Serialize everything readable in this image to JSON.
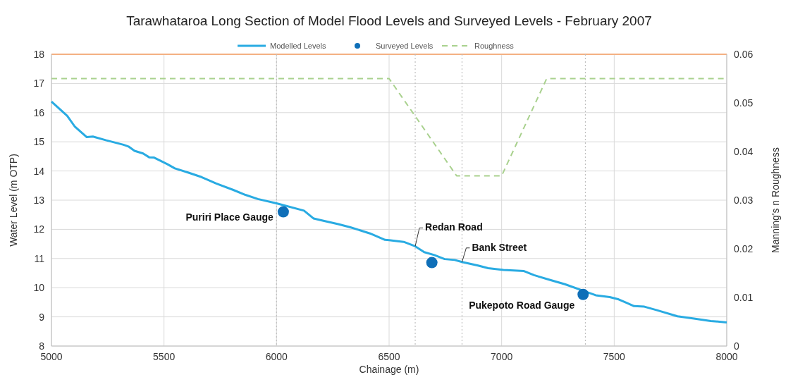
{
  "chart_data": {
    "type": "line",
    "title": "Tarawhataroa Long Section of Model Flood Levels and Surveyed Levels - February 2007",
    "xlabel": "Chainage (m)",
    "ylabel": "Water Level (m OTP)",
    "y2label": "Manning's n Roughness",
    "xlim": [
      5000,
      8000
    ],
    "xticks": [
      5000,
      5500,
      6000,
      6500,
      7000,
      7500,
      8000
    ],
    "ylim": [
      8,
      18
    ],
    "yticks": [
      8,
      9,
      10,
      11,
      12,
      13,
      14,
      15,
      16,
      17,
      18
    ],
    "y2lim": [
      0,
      0.06
    ],
    "y2ticks": [
      0,
      0.01,
      0.02,
      0.03,
      0.04,
      0.05,
      0.06
    ],
    "grid": true,
    "legend": "top",
    "marker": "none",
    "series": [
      {
        "name": "Modelled Levels",
        "color": "#29abe2",
        "line_style": "solid",
        "x": [
          5000,
          5070,
          5103,
          5157,
          5184,
          5244,
          5320,
          5342,
          5369,
          5407,
          5434,
          5456,
          5516,
          5548,
          5602,
          5667,
          5732,
          5808,
          5862,
          5917,
          6000,
          6122,
          6165,
          6198,
          6274,
          6328,
          6415,
          6482,
          6500,
          6565,
          6616,
          6656,
          6701,
          6747,
          6792,
          6824,
          6895,
          6940,
          7008,
          7099,
          7144,
          7213,
          7281,
          7372,
          7418,
          7480,
          7520,
          7553,
          7588,
          7634,
          7690,
          7781,
          7849,
          7929,
          8000
        ],
        "values": [
          16.38,
          15.89,
          15.53,
          15.16,
          15.18,
          15.05,
          14.9,
          14.84,
          14.69,
          14.6,
          14.47,
          14.46,
          14.23,
          14.09,
          13.96,
          13.79,
          13.57,
          13.35,
          13.18,
          13.04,
          12.89,
          12.64,
          12.37,
          12.31,
          12.18,
          12.07,
          11.86,
          11.64,
          11.63,
          11.57,
          11.42,
          11.22,
          11.12,
          10.98,
          10.95,
          10.88,
          10.76,
          10.67,
          10.61,
          10.57,
          10.43,
          10.27,
          10.12,
          9.87,
          9.74,
          9.68,
          9.6,
          9.49,
          9.37,
          9.35,
          9.23,
          9.02,
          8.95,
          8.86,
          8.81
        ]
      },
      {
        "name": "Surveyed Levels",
        "type": "scatter",
        "color": "#0f6fb8",
        "marker": "circle",
        "x": [
          6030,
          6690,
          7362
        ],
        "values": [
          12.6,
          10.86,
          9.77
        ]
      },
      {
        "name": "Roughness",
        "type": "line",
        "axis": "y2",
        "color": "#a9d18e",
        "line_style": "dashed",
        "x": [
          5000,
          6500,
          6800,
          7000,
          7200,
          8000
        ],
        "values": [
          0.055,
          0.055,
          0.035,
          0.035,
          0.055,
          0.055
        ]
      }
    ],
    "ref_lines": [
      {
        "axis": "y",
        "value": 18,
        "color": "#f4b183",
        "line_style": "solid"
      },
      {
        "axis": "x",
        "value": 6000,
        "color": "#bfbfbf",
        "line_style": "dotted"
      },
      {
        "axis": "x",
        "value": 6616,
        "color": "#bfbfbf",
        "line_style": "dotted"
      },
      {
        "axis": "x",
        "value": 6824,
        "color": "#bfbfbf",
        "line_style": "dotted"
      },
      {
        "axis": "x",
        "value": 7372,
        "color": "#bfbfbf",
        "line_style": "dotted"
      }
    ],
    "annotations": [
      {
        "text": "Puriri Place Gauge",
        "x": 6030,
        "y": 12.6
      },
      {
        "text": "Redan Road",
        "x": 6616,
        "y": 11.42
      },
      {
        "text": "Bank Street",
        "x": 6824,
        "y": 10.88
      },
      {
        "text": "Pukepoto Road Gauge",
        "x": 7362,
        "y": 9.77
      }
    ]
  }
}
